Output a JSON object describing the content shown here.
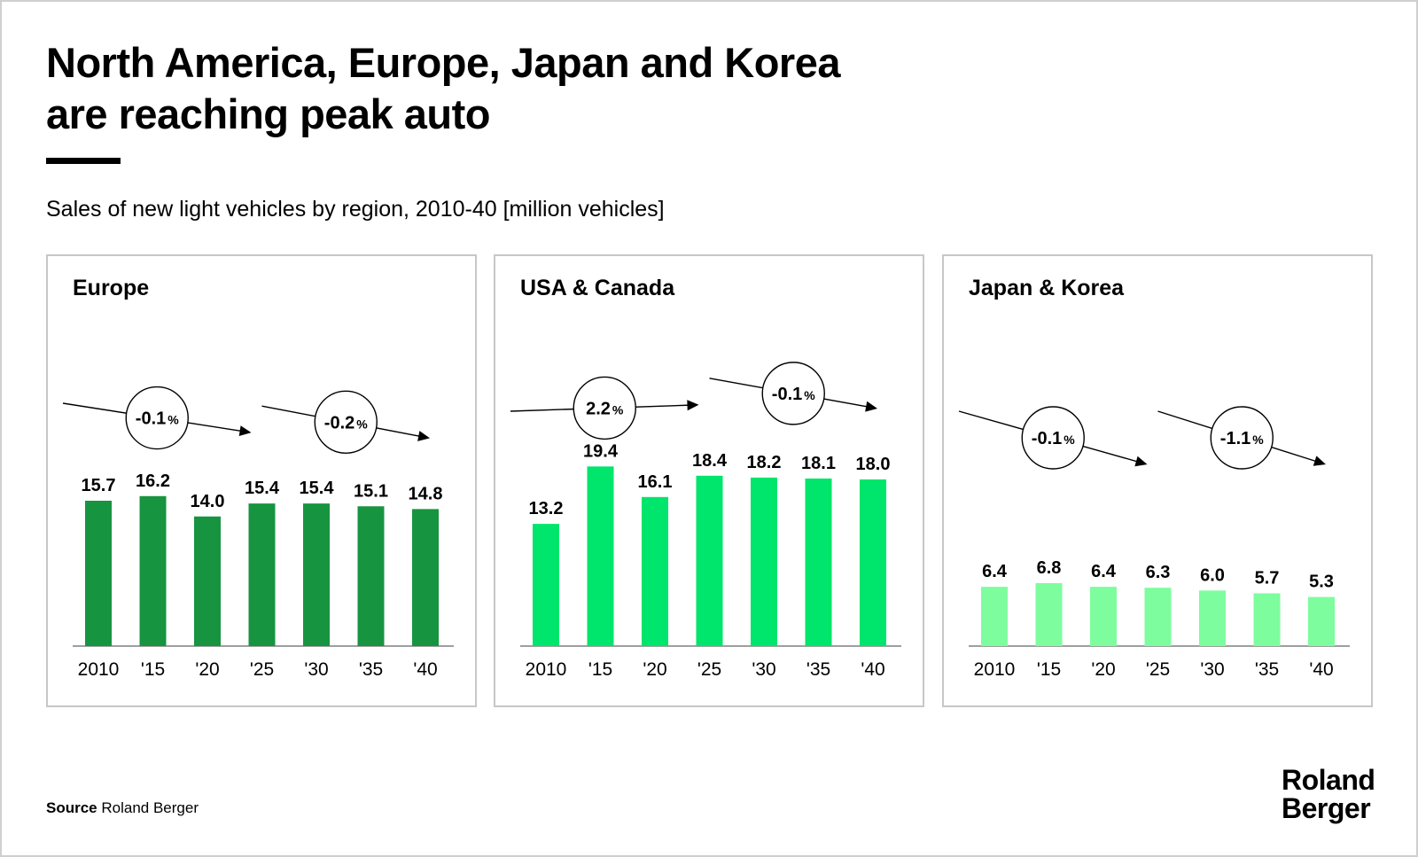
{
  "header": {
    "title": "North America, Europe, Japan and Korea\nare reaching peak auto",
    "subtitle": "Sales of new light vehicles by region, 2010-40 [million vehicles]"
  },
  "footer": {
    "source_label": "Source",
    "source_text": "Roland Berger",
    "brand": "Roland\nBerger"
  },
  "chart_data": [
    {
      "type": "bar",
      "title": "Europe",
      "color": "#17943f",
      "categories": [
        "2010",
        "'15",
        "'20",
        "'25",
        "'30",
        "'35",
        "'40"
      ],
      "values": [
        15.7,
        16.2,
        14.0,
        15.4,
        15.4,
        15.1,
        14.8
      ],
      "ylim": [
        0,
        20
      ],
      "cagr": [
        {
          "label": "-0.1",
          "unit": "%",
          "from": "2010",
          "to": "'25"
        },
        {
          "label": "-0.2",
          "unit": "%",
          "from": "'25",
          "to": "'40"
        }
      ]
    },
    {
      "type": "bar",
      "title": "USA & Canada",
      "color": "#00e56b",
      "categories": [
        "2010",
        "'15",
        "'20",
        "'25",
        "'30",
        "'35",
        "'40"
      ],
      "values": [
        13.2,
        19.4,
        16.1,
        18.4,
        18.2,
        18.1,
        18.0
      ],
      "ylim": [
        0,
        20
      ],
      "cagr": [
        {
          "label": "2.2",
          "unit": "%",
          "from": "2010",
          "to": "'25"
        },
        {
          "label": "-0.1",
          "unit": "%",
          "from": "'25",
          "to": "'40"
        }
      ]
    },
    {
      "type": "bar",
      "title": "Japan & Korea",
      "color": "#7dfd9e",
      "categories": [
        "2010",
        "'15",
        "'20",
        "'25",
        "'30",
        "'35",
        "'40"
      ],
      "values": [
        6.4,
        6.8,
        6.4,
        6.3,
        6.0,
        5.7,
        5.3
      ],
      "ylim": [
        0,
        20
      ],
      "cagr": [
        {
          "label": "-0.1",
          "unit": "%",
          "from": "2010",
          "to": "'25"
        },
        {
          "label": "-1.1",
          "unit": "%",
          "from": "'25",
          "to": "'40"
        }
      ]
    }
  ]
}
